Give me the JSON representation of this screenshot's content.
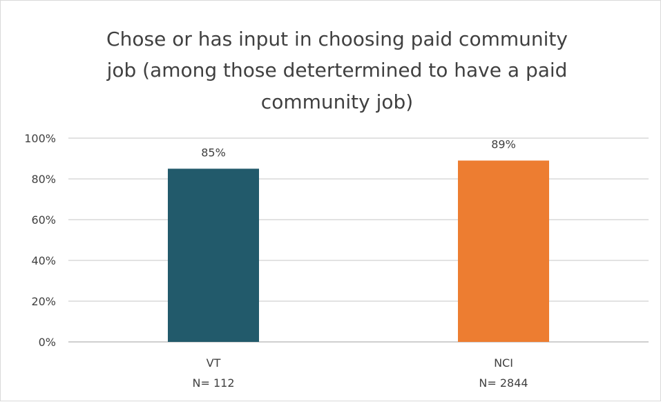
{
  "chart_data": {
    "type": "bar",
    "title_lines": [
      "Chose or has input in choosing paid community",
      "job (among those detertermined to have a paid",
      "community job)"
    ],
    "categories": [
      "VT",
      "NCI"
    ],
    "category_sublabels": [
      "N= 112",
      "N= 2844"
    ],
    "values": [
      85,
      89
    ],
    "data_labels": [
      "85%",
      "89%"
    ],
    "colors": [
      "#225a6b",
      "#ed7d31"
    ],
    "ylim": [
      0,
      100
    ],
    "yticks": [
      0,
      20,
      40,
      60,
      80,
      100
    ],
    "ytick_labels": [
      "0%",
      "20%",
      "40%",
      "60%",
      "80%",
      "100%"
    ],
    "xlabel": "",
    "ylabel": "",
    "grid": true,
    "legend": "none"
  }
}
